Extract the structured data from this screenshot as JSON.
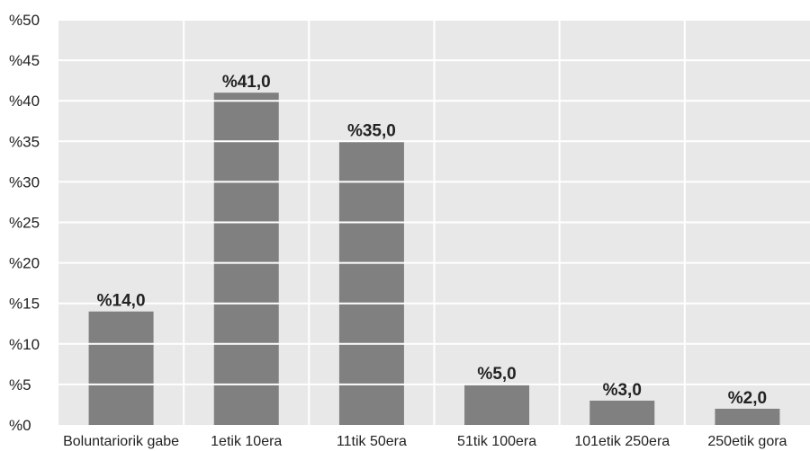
{
  "chart_data": {
    "type": "bar",
    "title": "",
    "xlabel": "",
    "ylabel": "",
    "categories": [
      "Boluntariorik gabe",
      "1etik 10era",
      "11tik 50era",
      "51tik 100era",
      "101etik 250era",
      "250etik gora"
    ],
    "values": [
      14.0,
      41.0,
      35.0,
      5.0,
      3.0,
      2.0
    ],
    "data_labels": [
      "%14,0",
      "%41,0",
      "%35,0",
      "%5,0",
      "%3,0",
      "%2,0"
    ],
    "yticks": [
      "%0",
      "%5",
      "%10",
      "%15",
      "%20",
      "%25",
      "%30",
      "%35",
      "%40",
      "%45",
      "%50"
    ],
    "ylim": [
      0,
      50
    ],
    "grid": true,
    "legend": "none",
    "colors": {
      "bar": "#808080",
      "plot_background": "#e8e8e8",
      "gridline": "#ffffff",
      "text": "#222222"
    }
  }
}
